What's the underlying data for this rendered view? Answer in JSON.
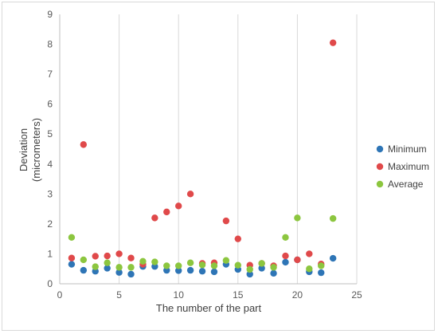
{
  "chart_data": {
    "type": "scatter",
    "title": "",
    "xlabel": "The number of the part",
    "ylabel_lines": [
      "Deviation",
      "(micrometers)"
    ],
    "xlim": [
      0,
      25
    ],
    "ylim": [
      0,
      9
    ],
    "xticks": [
      0,
      5,
      10,
      15,
      20,
      25
    ],
    "yticks": [
      0,
      1,
      2,
      3,
      4,
      5,
      6,
      7,
      8,
      9
    ],
    "grid": "vertical",
    "legend_position": "right",
    "x": [
      1,
      2,
      3,
      4,
      5,
      6,
      7,
      8,
      9,
      10,
      11,
      12,
      13,
      14,
      15,
      16,
      17,
      18,
      19,
      20,
      21,
      22,
      23
    ],
    "series": [
      {
        "name": "Minimum",
        "color": "#2e75b6",
        "values": [
          0.65,
          0.45,
          0.42,
          0.52,
          0.38,
          0.32,
          0.58,
          0.58,
          0.45,
          0.44,
          0.45,
          0.42,
          0.4,
          0.65,
          0.48,
          0.32,
          0.52,
          0.35,
          0.72,
          0.8,
          0.4,
          0.37,
          0.85
        ]
      },
      {
        "name": "Maximum",
        "color": "#e0494a",
        "values": [
          0.86,
          4.65,
          0.92,
          0.93,
          1.0,
          0.86,
          0.65,
          2.2,
          2.4,
          2.6,
          3.0,
          0.68,
          0.7,
          2.1,
          1.5,
          0.62,
          0.68,
          0.6,
          0.93,
          0.8,
          1.0,
          0.66,
          8.05
        ]
      },
      {
        "name": "Average",
        "color": "#8cc63f",
        "values": [
          1.55,
          0.8,
          0.57,
          0.7,
          0.55,
          0.55,
          0.75,
          0.73,
          0.6,
          0.6,
          0.7,
          0.63,
          0.6,
          0.78,
          0.62,
          0.48,
          0.68,
          0.55,
          1.55,
          2.2,
          0.5,
          0.6,
          2.18
        ]
      }
    ]
  }
}
